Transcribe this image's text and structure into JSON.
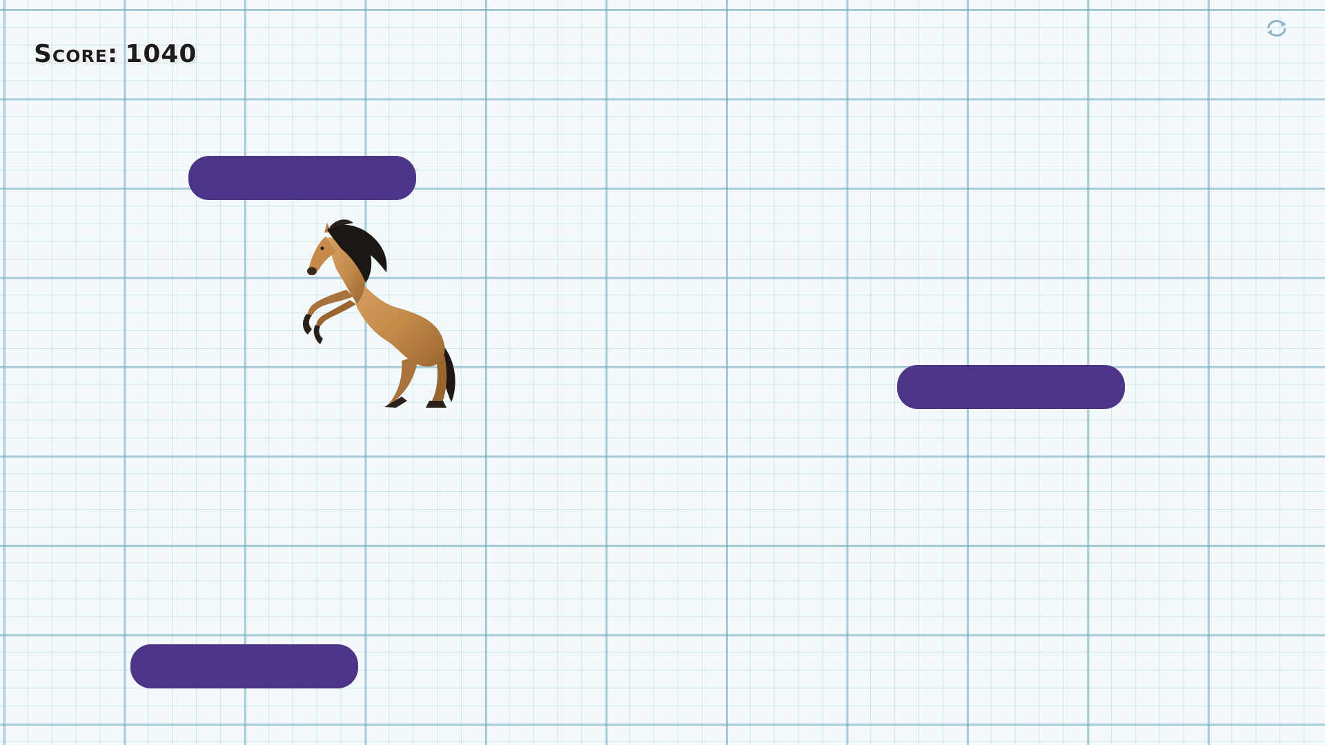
{
  "hud": {
    "score_label": "Score",
    "score_separator": ":",
    "score_value": "1040"
  },
  "icons": {
    "restart": "refresh-icon",
    "player": "horse-player"
  },
  "colors": {
    "platform": "#4c3587",
    "grid_major": "#6eaabe",
    "grid_minor": "#8cbecd",
    "background": "#f3f9fb"
  },
  "platforms": [
    {
      "id": "platform-1"
    },
    {
      "id": "platform-2"
    },
    {
      "id": "platform-3"
    }
  ]
}
